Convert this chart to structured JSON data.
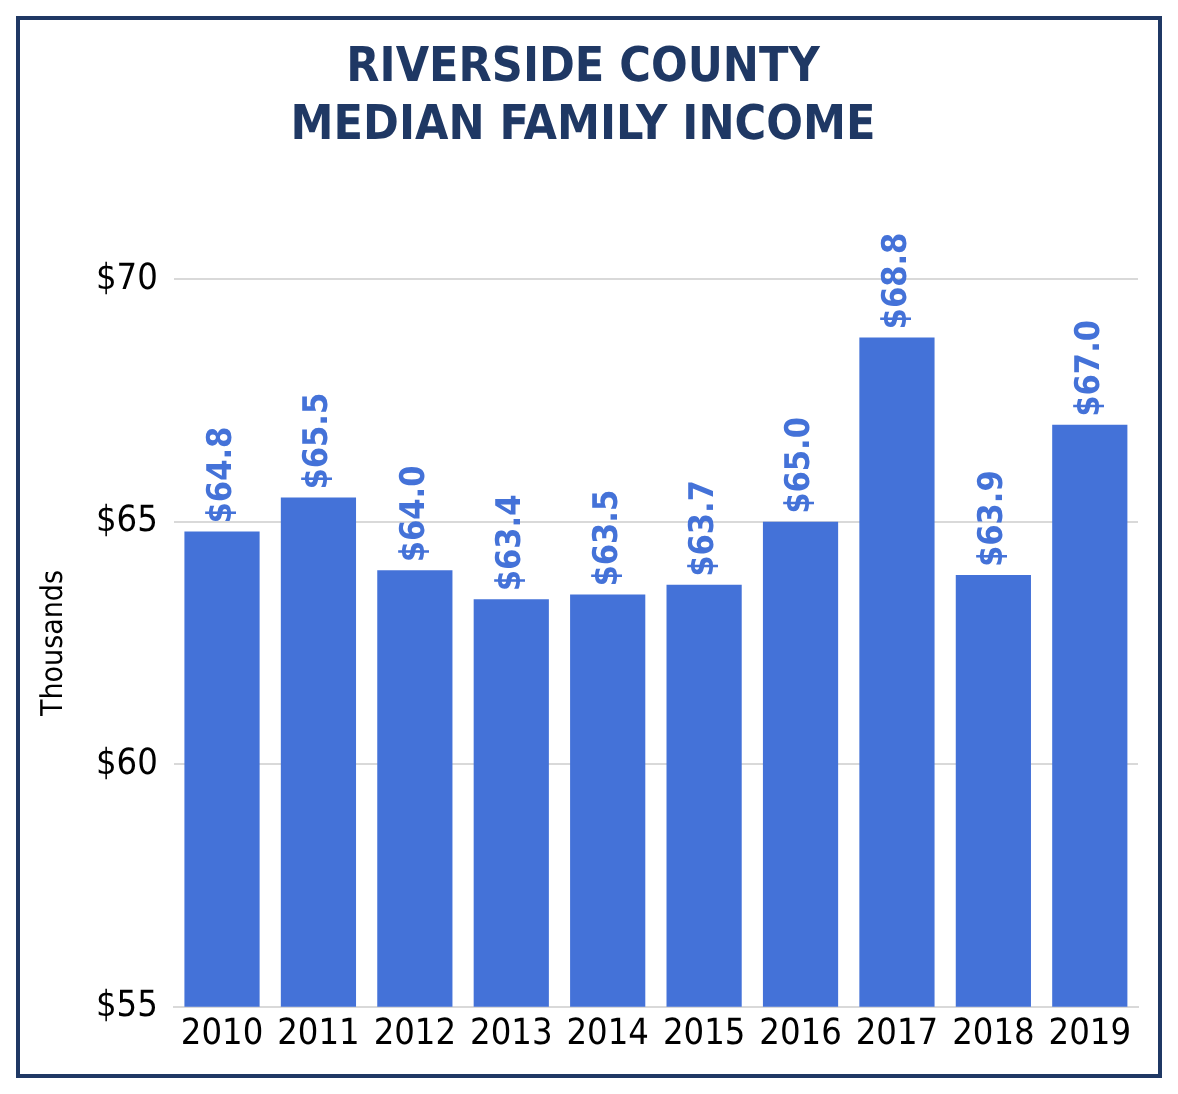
{
  "chart_data": {
    "type": "bar",
    "title": "RIVERSIDE COUNTY\nMEDIAN FAMILY INCOME",
    "ylabel": "Thousands",
    "categories": [
      "2010",
      "2011",
      "2012",
      "2013",
      "2014",
      "2015",
      "2016",
      "2017",
      "2018",
      "2019"
    ],
    "series": [
      {
        "color": "#4472d8",
        "values": [
          64.8,
          65.5,
          64.0,
          63.4,
          63.5,
          63.7,
          65.0,
          68.8,
          63.9,
          67.0
        ],
        "value_labels": [
          "$64.8",
          "$65.5",
          "$64.0",
          "$63.4",
          "$63.5",
          "$63.7",
          "$65.0",
          "$68.8",
          "$63.9",
          "$67.0"
        ]
      }
    ],
    "ylim": [
      55,
      70
    ],
    "yticks": [
      {
        "value": 55,
        "label": "$55"
      },
      {
        "value": 60,
        "label": "$60"
      },
      {
        "value": 65,
        "label": "$65"
      },
      {
        "value": 70,
        "label": "$70"
      }
    ],
    "grid": "y",
    "legend": false
  }
}
